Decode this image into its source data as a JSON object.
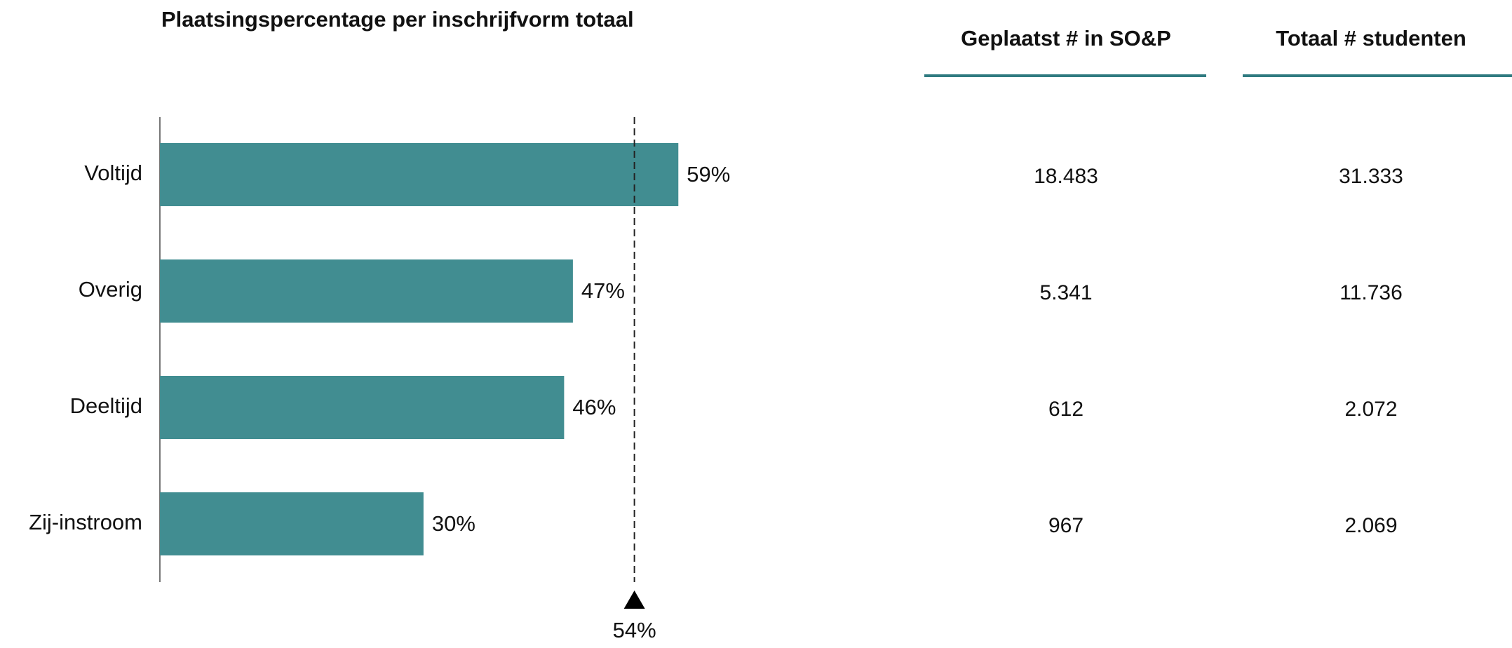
{
  "chart_data": {
    "type": "bar",
    "orientation": "horizontal",
    "title": "Plaatsingspercentage per inschrijfvorm totaal",
    "categories": [
      "Voltijd",
      "Overig",
      "Deeltijd",
      "Zij-instroom"
    ],
    "values": [
      59,
      47,
      46,
      30
    ],
    "value_labels": [
      "59%",
      "47%",
      "46%",
      "30%"
    ],
    "color": "#418d91",
    "reference_line": {
      "value": 54,
      "label": "54%"
    }
  },
  "table": {
    "columns": [
      "Geplaatst # in SO&P",
      "Totaal # studenten"
    ],
    "rows": [
      [
        "18.483",
        "31.333"
      ],
      [
        "5.341",
        "11.736"
      ],
      [
        "612",
        "2.072"
      ],
      [
        "967",
        "2.069"
      ]
    ]
  }
}
